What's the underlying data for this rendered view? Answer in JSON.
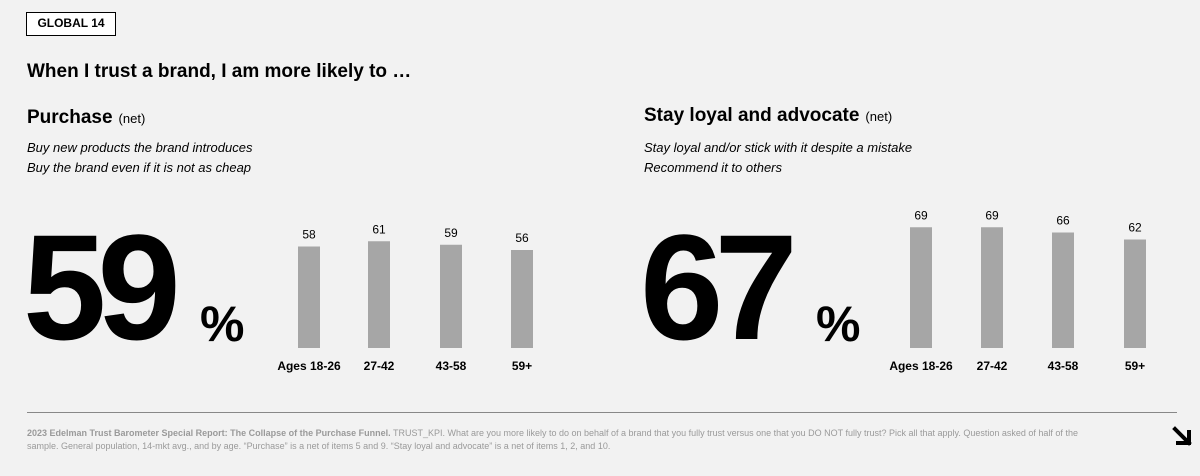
{
  "tag": "GLOBAL 14",
  "headline": "When I trust a brand, I am more likely to …",
  "panels": [
    {
      "title": "Purchase",
      "title_suffix": "(net)",
      "desc_lines": [
        "Buy new products the brand introduces",
        "Buy the brand even if it is not as cheap"
      ],
      "big_value": "59",
      "big_unit": "%"
    },
    {
      "title": "Stay loyal and advocate",
      "title_suffix": "(net)",
      "desc_lines": [
        "Stay loyal and/or stick with it despite a mistake",
        "Recommend it to others"
      ],
      "big_value": "67",
      "big_unit": "%"
    }
  ],
  "chart_data": [
    {
      "type": "bar",
      "categories": [
        "Ages 18-26",
        "27-42",
        "43-58",
        "59+"
      ],
      "values": [
        58,
        61,
        59,
        56
      ],
      "unit": "%",
      "bar_color": "#a6a6a6"
    },
    {
      "type": "bar",
      "categories": [
        "Ages 18-26",
        "27-42",
        "43-58",
        "59+"
      ],
      "values": [
        69,
        69,
        66,
        62
      ],
      "unit": "%",
      "bar_color": "#a6a6a6"
    }
  ],
  "footnote": {
    "source": "2023 Edelman Trust Barometer Special Report: The Collapse of the Purchase Funnel.",
    "text": " TRUST_KPI. What are you more likely to do on behalf of a brand that you fully trust versus one that you DO NOT fully trust? Pick all that apply. Question asked of half of the sample. General population, 14-mkt avg., and by age. “Purchase” is a net of items 5 and 9. “Stay loyal and advocate” is a net of items 1, 2, and 10."
  },
  "next_icon": "arrow-down-right-icon"
}
